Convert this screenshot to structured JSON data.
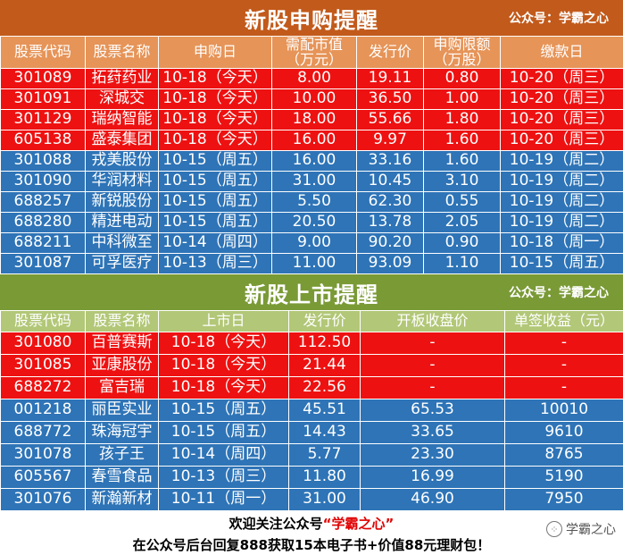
{
  "subscription": {
    "title": "新股申购提醒",
    "account": "公众号：学霸之心",
    "headers": [
      "股票代码",
      "股票名称",
      "申购日",
      "需配市值\n（万元）",
      "发行价",
      "申购限额\n（万股）",
      "缴款日"
    ],
    "rows": [
      {
        "status": "red",
        "cells": [
          "301089",
          "拓荮药业",
          "10-18（今天）",
          "8.00",
          "19.11",
          "0.80",
          "10-20（周三）"
        ]
      },
      {
        "status": "red",
        "cells": [
          "301091",
          "深城交",
          "10-18（今天）",
          "10.00",
          "36.50",
          "1.00",
          "10-20（周三）"
        ]
      },
      {
        "status": "red",
        "cells": [
          "301129",
          "瑞纳智能",
          "10-18（今天）",
          "18.00",
          "55.66",
          "1.80",
          "10-20（周三）"
        ]
      },
      {
        "status": "red",
        "cells": [
          "605138",
          "盛泰集团",
          "10-18（今天）",
          "16.00",
          "9.97",
          "1.60",
          "10-20（周三）"
        ]
      },
      {
        "status": "blue",
        "cells": [
          "301088",
          "戎美股份",
          "10-15（周五）",
          "16.00",
          "33.16",
          "1.60",
          "10-19（周二）"
        ]
      },
      {
        "status": "blue",
        "cells": [
          "301090",
          "华润材料",
          "10-15（周五）",
          "31.00",
          "10.45",
          "3.10",
          "10-19（周二）"
        ]
      },
      {
        "status": "blue",
        "cells": [
          "688257",
          "新锐股份",
          "10-15（周五）",
          "5.50",
          "62.30",
          "0.55",
          "10-19（周二）"
        ]
      },
      {
        "status": "blue",
        "cells": [
          "688280",
          "精进电动",
          "10-15（周五）",
          "20.50",
          "13.78",
          "2.05",
          "10-19（周二）"
        ]
      },
      {
        "status": "blue",
        "cells": [
          "688211",
          "中科微至",
          "10-14（周四）",
          "9.00",
          "90.20",
          "0.90",
          "10-18（周一）"
        ]
      },
      {
        "status": "blue",
        "cells": [
          "301087",
          "可孚医疗",
          "10-13（周三）",
          "11.00",
          "93.09",
          "1.10",
          "10-15（周五）"
        ]
      }
    ]
  },
  "listing": {
    "title": "新股上市提醒",
    "account": "公众号：学霸之心",
    "headers": [
      "股票代码",
      "股票名称",
      "上市日",
      "发行价",
      "开板收盘价",
      "单签收益（元）"
    ],
    "rows": [
      {
        "status": "red",
        "cells": [
          "301080",
          "百普赛斯",
          "10-18（今天）",
          "112.50",
          "-",
          "-"
        ]
      },
      {
        "status": "red",
        "cells": [
          "301085",
          "亚康股份",
          "10-18（今天）",
          "21.44",
          "-",
          "-"
        ]
      },
      {
        "status": "red",
        "cells": [
          "688272",
          "富吉瑞",
          "10-18（今天）",
          "22.56",
          "-",
          "-"
        ]
      },
      {
        "status": "blue",
        "cells": [
          "001218",
          "丽臣实业",
          "10-15（周五）",
          "45.51",
          "65.53",
          "10010"
        ]
      },
      {
        "status": "blue",
        "cells": [
          "688772",
          "珠海冠宇",
          "10-15（周五）",
          "14.43",
          "33.65",
          "9610"
        ]
      },
      {
        "status": "blue",
        "cells": [
          "301078",
          "孩子王",
          "10-14（周四）",
          "5.77",
          "23.30",
          "8765"
        ]
      },
      {
        "status": "blue",
        "cells": [
          "605567",
          "春雪食品",
          "10-13（周三）",
          "11.80",
          "16.99",
          "5190"
        ]
      },
      {
        "status": "blue",
        "cells": [
          "301076",
          "新瀚新材",
          "10-11（周一）",
          "31.00",
          "46.90",
          "7950"
        ]
      }
    ]
  },
  "footer": {
    "line1_prefix": "欢迎关注公众号",
    "line1_highlight": "“学霸之心”",
    "line2": "在公众号后台回复888获取15本电子书+价值88元理财包！",
    "watermark_icon": "wechat-icon",
    "watermark": "学霸之心"
  },
  "colors": {
    "subscription_header": "#c25a1b",
    "listing_header": "#7a9a36",
    "today_row": "#ee1111",
    "past_row": "#2e74b7"
  }
}
